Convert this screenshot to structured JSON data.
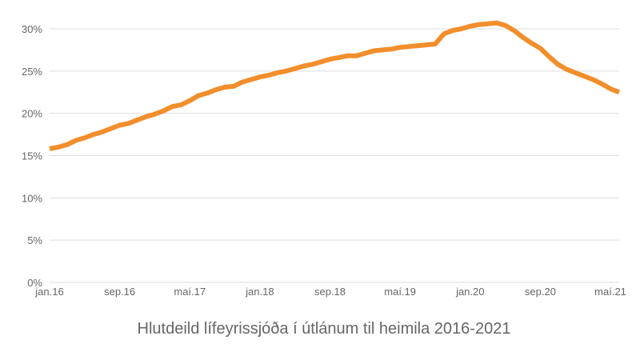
{
  "chart_data": {
    "type": "line",
    "title": "Hlutdeild lífeyrissjóða í útlánum til heimila 2016-2021",
    "xlabel": "",
    "ylabel": "",
    "ylim": [
      0,
      30
    ],
    "yticks": [
      "0%",
      "5%",
      "10%",
      "15%",
      "20%",
      "25%",
      "30%"
    ],
    "xticks": [
      "jan.16",
      "sep.16",
      "maí.17",
      "jan.18",
      "sep.18",
      "maí.19",
      "jan.20",
      "sep.20",
      "maí.21"
    ],
    "grid": true,
    "legend": null,
    "line_color": "#F28E2B",
    "x": [
      "jan.16",
      "feb.16",
      "mar.16",
      "apr.16",
      "maí.16",
      "jún.16",
      "júl.16",
      "ágú.16",
      "sep.16",
      "okt.16",
      "nóv.16",
      "des.16",
      "jan.17",
      "feb.17",
      "mar.17",
      "apr.17",
      "maí.17",
      "jún.17",
      "júl.17",
      "ágú.17",
      "sep.17",
      "okt.17",
      "nóv.17",
      "des.17",
      "jan.18",
      "feb.18",
      "mar.18",
      "apr.18",
      "maí.18",
      "jún.18",
      "júl.18",
      "ágú.18",
      "sep.18",
      "okt.18",
      "nóv.18",
      "des.18",
      "jan.19",
      "feb.19",
      "mar.19",
      "apr.19",
      "maí.19",
      "jún.19",
      "júl.19",
      "ágú.19",
      "sep.19",
      "okt.19",
      "nóv.19",
      "des.19",
      "jan.20",
      "feb.20",
      "mar.20",
      "apr.20",
      "maí.20",
      "jún.20",
      "júl.20",
      "ágú.20",
      "sep.20",
      "okt.20",
      "nóv.20",
      "des.20",
      "jan.21",
      "feb.21",
      "mar.21",
      "apr.21",
      "maí.21",
      "jún.21"
    ],
    "series": [
      {
        "name": "Hlutdeild lífeyrissjóða",
        "values": [
          15.8,
          16.0,
          16.3,
          16.8,
          17.1,
          17.5,
          17.8,
          18.2,
          18.6,
          18.8,
          19.2,
          19.6,
          19.9,
          20.3,
          20.8,
          21.0,
          21.5,
          22.1,
          22.4,
          22.8,
          23.1,
          23.2,
          23.7,
          24.0,
          24.3,
          24.5,
          24.8,
          25.0,
          25.3,
          25.6,
          25.8,
          26.1,
          26.4,
          26.6,
          26.8,
          26.8,
          27.1,
          27.4,
          27.5,
          27.6,
          27.8,
          27.9,
          28.0,
          28.1,
          28.2,
          29.4,
          29.8,
          30.0,
          30.3,
          30.5,
          30.6,
          30.7,
          30.4,
          29.8,
          29.0,
          28.3,
          27.7,
          26.7,
          25.8,
          25.2,
          24.8,
          24.4,
          24.0,
          23.5,
          22.9,
          22.5
        ]
      }
    ]
  },
  "title": "Hlutdeild lífeyrissjóða í útlánum til heimila 2016-2021"
}
